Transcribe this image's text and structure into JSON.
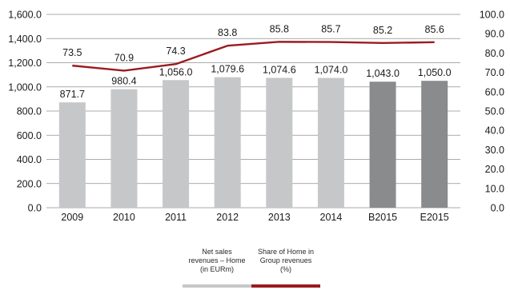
{
  "chart_data": {
    "type": "bar",
    "categories": [
      "2009",
      "2010",
      "2011",
      "2012",
      "2013",
      "2014",
      "B2015",
      "E2015"
    ],
    "series": [
      {
        "name": "Net sales revenues – Home (in EURm)",
        "type": "bar",
        "axis": "left",
        "values": [
          871.7,
          980.4,
          1056.0,
          1079.6,
          1074.6,
          1074.0,
          1043.0,
          1050.0
        ],
        "labels": [
          "871.7",
          "980.4",
          "1,056.0",
          "1,079.6",
          "1,074.6",
          "1,074.0",
          "1,043.0",
          "1,050.0"
        ]
      },
      {
        "name": "Share of Home in Group revenues (%)",
        "type": "line",
        "axis": "right",
        "values": [
          73.5,
          70.9,
          74.3,
          83.8,
          85.8,
          85.7,
          85.2,
          85.6
        ],
        "labels": [
          "73.5",
          "70.9",
          "74.3",
          "83.8",
          "85.8",
          "85.7",
          "85.2",
          "85.6"
        ]
      }
    ],
    "y_left": {
      "range": [
        0,
        1600
      ],
      "ticks": [
        0,
        200,
        400,
        600,
        800,
        1000,
        1200,
        1400,
        1600
      ],
      "tick_labels": [
        "0.0",
        "200.0",
        "400.0",
        "600.0",
        "800.0",
        "1,000.0",
        "1,200.0",
        "1,400.0",
        "1,600.0"
      ]
    },
    "y_right": {
      "range": [
        0,
        100
      ],
      "ticks": [
        0,
        10,
        20,
        30,
        40,
        50,
        60,
        70,
        80,
        90,
        100
      ],
      "tick_labels": [
        "0.0",
        "10.0",
        "20.0",
        "30.0",
        "40.0",
        "50.0",
        "60.0",
        "70.0",
        "80.0",
        "90.0",
        "100.0"
      ]
    },
    "grid": true,
    "legend_position": "bottom-center",
    "legend": [
      {
        "lines": [
          "Net sales",
          "revenues – Home",
          "(in EURm)"
        ]
      },
      {
        "lines": [
          "Share of Home in",
          "Group revenues",
          "(%)"
        ]
      }
    ],
    "colors": {
      "bar_actual": "#c6c7c9",
      "bar_budget": "#8a8b8d",
      "line": "#9b1b1e",
      "grid": "#8f8f8f",
      "text": "#1a1a1a"
    }
  }
}
